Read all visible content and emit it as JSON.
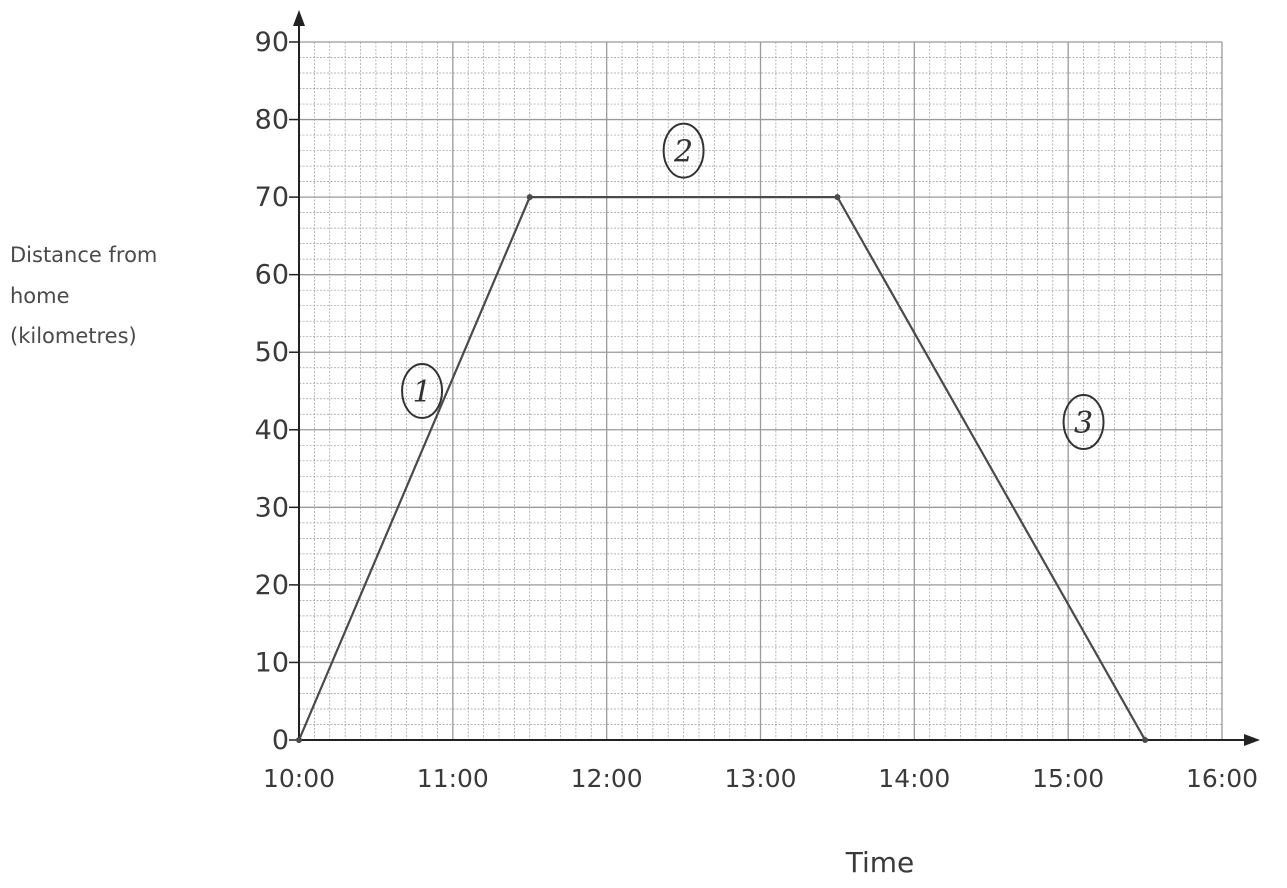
{
  "chart_data": {
    "type": "line",
    "title": "",
    "xlabel": "Time",
    "ylabel": [
      "Distance from",
      "home",
      "(kilometres)"
    ],
    "x_ticks": [
      "10:00",
      "11:00",
      "12:00",
      "13:00",
      "14:00",
      "15:00",
      "16:00"
    ],
    "y_ticks": [
      0,
      10,
      20,
      30,
      40,
      50,
      60,
      70,
      80,
      90
    ],
    "xlim": [
      "10:00",
      "16:00"
    ],
    "ylim": [
      0,
      90
    ],
    "grid": true,
    "series": [
      {
        "points": [
          {
            "x": "10:00",
            "y": 0
          },
          {
            "x": "11:30",
            "y": 70
          },
          {
            "x": "13:30",
            "y": 70
          },
          {
            "x": "15:30",
            "y": 0
          }
        ]
      }
    ],
    "annotations": [
      {
        "label": "1",
        "x": "10:48",
        "y": 45
      },
      {
        "label": "2",
        "x": "12:30",
        "y": 76
      },
      {
        "label": "3",
        "x": "15:06",
        "y": 41
      }
    ]
  },
  "colors": {
    "grid": "#9a9a9a",
    "line": "#4a4a4a",
    "axis": "#222222"
  }
}
